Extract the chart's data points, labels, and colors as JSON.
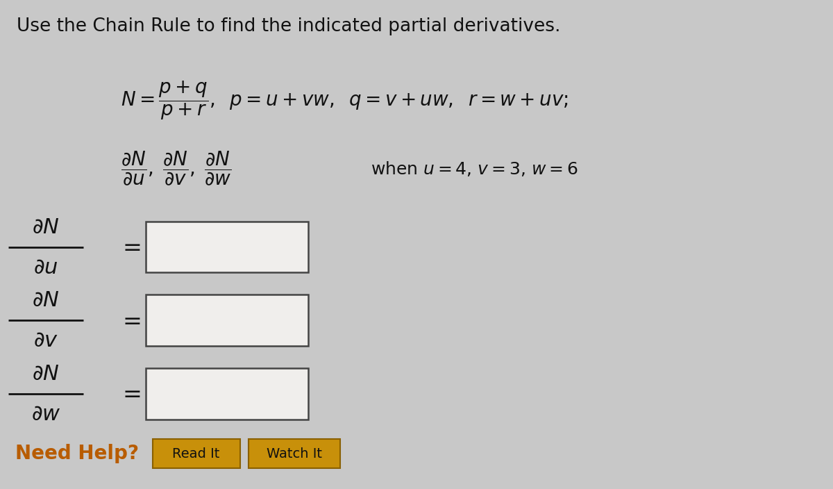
{
  "background_color": "#c8c8c8",
  "title": "Use the Chain Rule to find the indicated partial derivatives.",
  "title_fontsize": 19,
  "text_color": "#111111",
  "need_help_color": "#b85c00",
  "button_face_color": "#c8900a",
  "button_edge_color": "#8a6000",
  "button_text_color": "#111111",
  "box_face_color": "#f0eeec",
  "box_edge_color": "#444444",
  "frac_labels": [
    {
      "num": "$\\partial N$",
      "den": "$\\partial u$"
    },
    {
      "num": "$\\partial N$",
      "den": "$\\partial v$"
    },
    {
      "num": "$\\partial N$",
      "den": "$\\partial w$"
    }
  ],
  "label_fontsize": 22,
  "eq_fontsize": 20,
  "when_fontsize": 18
}
